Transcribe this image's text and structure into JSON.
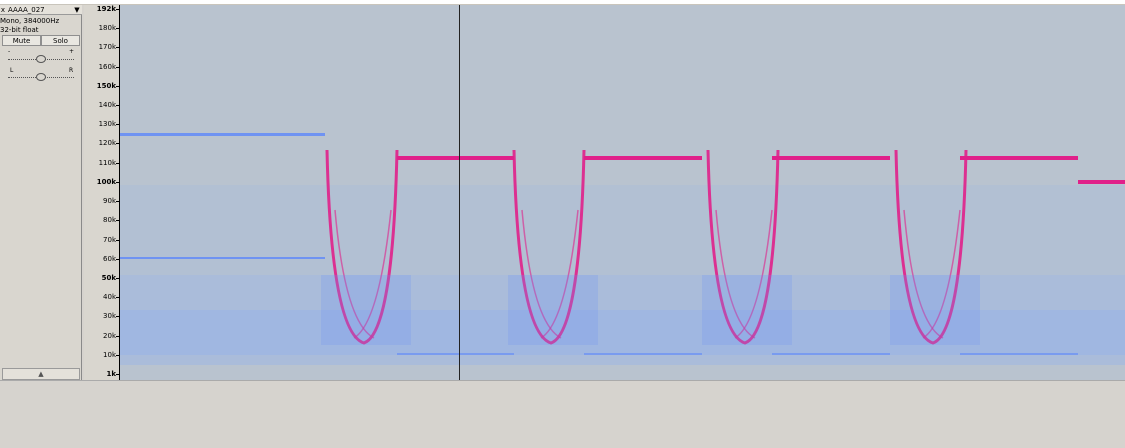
{
  "track": {
    "close_glyph": "x",
    "name": "AAAA_027",
    "menu_glyph": "▼",
    "rate_line": "Mono, 384000Hz",
    "format_line": "32-bit float",
    "mute_label": "Mute",
    "solo_label": "Solo",
    "gain_minus": "-",
    "gain_plus": "+",
    "pan_left": "L",
    "pan_right": "R",
    "collapse_glyph": "▲"
  },
  "ruler": {
    "ticks": [
      {
        "label": "192k",
        "bold": true
      },
      {
        "label": "180k",
        "bold": false
      },
      {
        "label": "170k",
        "bold": false
      },
      {
        "label": "160k",
        "bold": false
      },
      {
        "label": "150k",
        "bold": true
      },
      {
        "label": "140k",
        "bold": false
      },
      {
        "label": "130k",
        "bold": false
      },
      {
        "label": "120k",
        "bold": false
      },
      {
        "label": "110k",
        "bold": false
      },
      {
        "label": "100k",
        "bold": true
      },
      {
        "label": "90k",
        "bold": false
      },
      {
        "label": "80k",
        "bold": false
      },
      {
        "label": "70k",
        "bold": false
      },
      {
        "label": "60k",
        "bold": false
      },
      {
        "label": "50k",
        "bold": true
      },
      {
        "label": "40k",
        "bold": false
      },
      {
        "label": "30k",
        "bold": false
      },
      {
        "label": "20k",
        "bold": false
      },
      {
        "label": "10k",
        "bold": false
      },
      {
        "label": "1k",
        "bold": true
      }
    ]
  },
  "colors": {
    "background": "#b9c3cf",
    "tone_blue": "#6f93f2",
    "tone_magenta": "#e0208a",
    "noise_blue": "#8fb0ee"
  }
}
